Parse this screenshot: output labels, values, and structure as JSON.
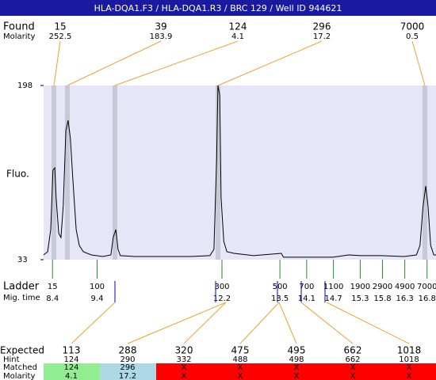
{
  "chart_data": {
    "type": "line",
    "title": "HLA-DQA1.F3 / HLA-DQA1.R3 / BRC 129 / Well ID 944621",
    "found": {
      "label": "Found",
      "sublabel": "Molarity",
      "sizes": [
        15,
        39,
        124,
        296,
        7000
      ],
      "molarities": [
        252.5,
        183.9,
        4.1,
        17.2,
        0.5
      ]
    },
    "y_label": "Fluo.",
    "ylim": [
      33,
      198
    ],
    "yticks": [
      33,
      198
    ],
    "xlim": [
      8.2,
      17.0
    ],
    "x": [
      8.2,
      8.29,
      8.36,
      8.41,
      8.45,
      8.48,
      8.54,
      8.59,
      8.64,
      8.7,
      8.75,
      8.8,
      8.86,
      8.93,
      9.0,
      9.09,
      9.27,
      9.53,
      9.71,
      9.76,
      9.82,
      9.87,
      9.92,
      10.24,
      10.78,
      11.49,
      11.93,
      12.02,
      12.08,
      12.11,
      12.15,
      12.18,
      12.24,
      12.31,
      12.47,
      12.91,
      13.53,
      13.58,
      13.98,
      14.69,
      15.04,
      15.31,
      15.76,
      16.29,
      16.56,
      16.64,
      16.71,
      16.77,
      16.82,
      16.88,
      16.95,
      17.0
    ],
    "values": [
      37.5,
      40.5,
      61.5,
      117.8,
      120,
      91.5,
      57.8,
      54,
      84,
      155.3,
      165,
      147.8,
      106.5,
      61.5,
      46.5,
      40.5,
      37.5,
      36,
      37.5,
      54,
      61.5,
      42.8,
      36.8,
      36,
      36,
      36,
      36.8,
      42.8,
      129,
      198,
      189,
      91.5,
      50.3,
      40.5,
      39,
      36.8,
      39,
      35.3,
      35.3,
      35.3,
      37.5,
      36.8,
      36.8,
      36,
      37.5,
      46.5,
      84,
      102.8,
      84,
      46.5,
      37.5,
      37.5
    ],
    "color": "#000000",
    "ladder": {
      "label": "Ladder",
      "sublabel": "Mig. time",
      "sizes": [
        15,
        100,
        300,
        500,
        700,
        1100,
        1900,
        2900,
        4900,
        7000
      ],
      "mig_times": [
        8.4,
        9.4,
        12.2,
        13.5,
        14.1,
        14.7,
        15.3,
        15.8,
        16.3,
        16.8
      ],
      "color": "#2a8a2a"
    },
    "table": {
      "expected_label": "Expected",
      "expected": [
        113,
        288,
        320,
        475,
        495,
        662,
        1018
      ],
      "hint_label": "Hint",
      "hint": [
        124,
        290,
        332,
        488,
        498,
        662,
        1018
      ],
      "matched_label": "Matched",
      "matched": [
        124,
        296,
        "X",
        "X",
        "X",
        "X",
        "X"
      ],
      "molarity_label": "Molarity",
      "molarity": [
        4.1,
        17.2,
        "X",
        "X",
        "X",
        "X",
        "X"
      ],
      "cell_colors": [
        "#90ee90",
        "#add8e6",
        "#ff0000",
        "#ff0000",
        "#ff0000",
        "#ff0000",
        "#ff0000"
      ]
    }
  }
}
